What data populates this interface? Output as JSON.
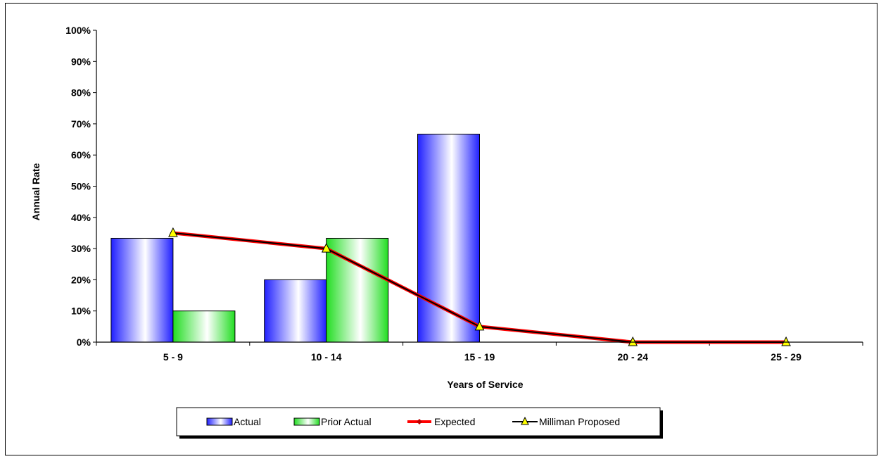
{
  "chart_data": {
    "type": "bar",
    "categories": [
      "5 - 9",
      "10 - 14",
      "15 - 19",
      "20 - 24",
      "25 - 29"
    ],
    "series": [
      {
        "name": "Actual",
        "kind": "bar",
        "values": [
          33.3,
          20.0,
          66.7,
          null,
          null
        ],
        "color": "#3333ff"
      },
      {
        "name": "Prior Actual",
        "kind": "bar",
        "values": [
          10.0,
          33.3,
          null,
          null,
          null
        ],
        "color": "#33dd33"
      },
      {
        "name": "Expected",
        "kind": "line",
        "values": [
          35,
          30,
          5,
          0,
          0
        ],
        "color": "#ff0000"
      },
      {
        "name": "Milliman Proposed",
        "kind": "line",
        "values": [
          35,
          30,
          5,
          0,
          0
        ],
        "color": "#000000",
        "marker_color": "#ffff00"
      }
    ],
    "ylim": [
      0,
      100
    ],
    "yticks": [
      "0%",
      "10%",
      "20%",
      "30%",
      "40%",
      "50%",
      "60%",
      "70%",
      "80%",
      "90%",
      "100%"
    ],
    "xlabel": "Years of Service",
    "ylabel": "Annual Rate",
    "grid": false,
    "legend": "bottom"
  }
}
